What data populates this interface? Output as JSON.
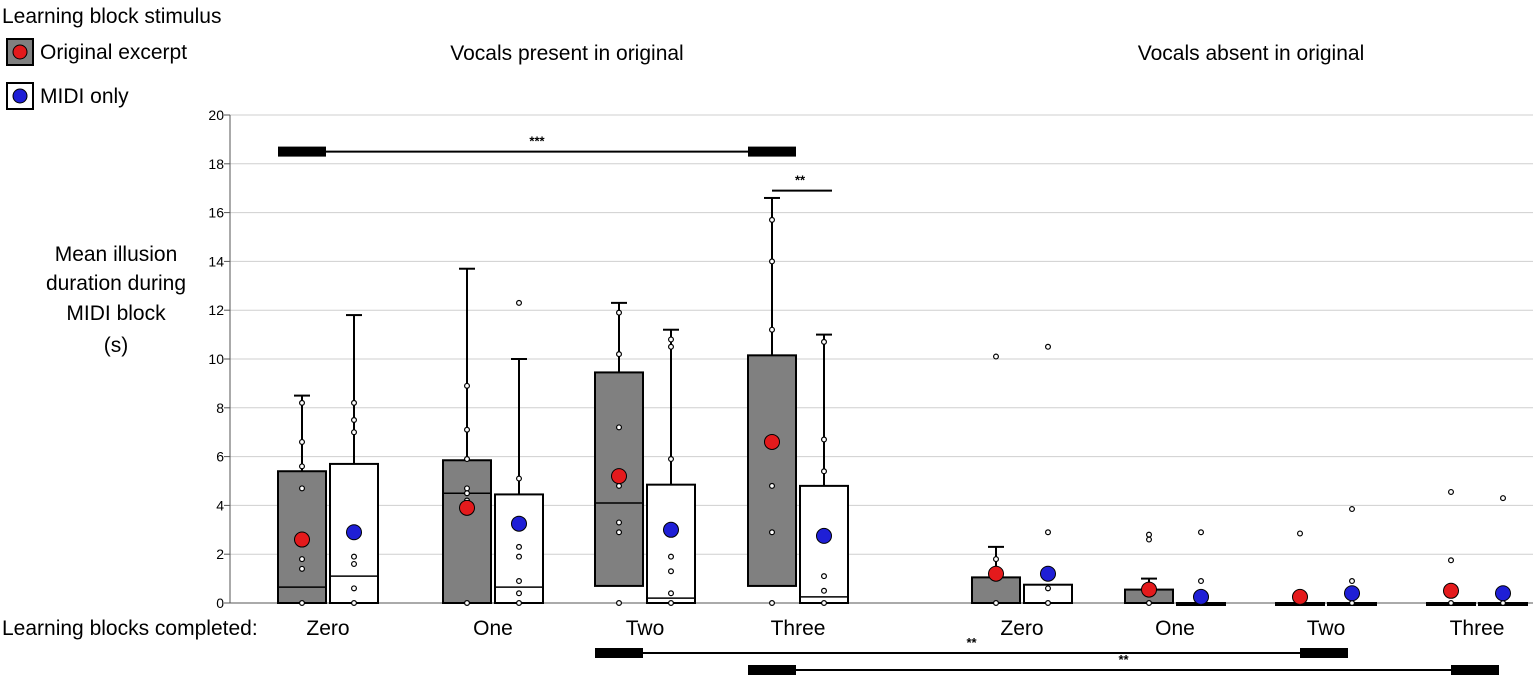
{
  "chart_data": {
    "type": "box",
    "legend": {
      "title": "Learning block stimulus",
      "placement": "top-left",
      "entries": [
        {
          "name": "Original excerpt",
          "box_color": "#808080",
          "marker_color": "#e41a1c"
        },
        {
          "name": "MIDI only",
          "box_color": "#ffffff",
          "marker_color": "#1f1fd6"
        }
      ]
    },
    "group_titles": [
      "Vocals present in original",
      "Vocals absent in original"
    ],
    "ylabel_lines": [
      "Mean illusion",
      "duration during",
      "MIDI block",
      "(s)"
    ],
    "x_axis_prefix": "Learning blocks completed:",
    "categories": [
      "Zero",
      "One",
      "Two",
      "Three",
      "Zero",
      "One",
      "Two",
      "Three"
    ],
    "ylim": [
      0,
      20
    ],
    "yticks": [
      0,
      2,
      4,
      6,
      8,
      10,
      12,
      14,
      16,
      18,
      20
    ],
    "grid": true,
    "series": [
      {
        "name": "Original excerpt",
        "boxes": [
          {
            "min": 0,
            "q1": 0,
            "median": 0.65,
            "q3": 5.4,
            "max": 8.5,
            "mean": 2.6,
            "points": [
              0,
              1.4,
              1.8,
              4.7,
              5.6,
              6.6,
              8.2
            ]
          },
          {
            "min": 0,
            "q1": 0,
            "median": 4.5,
            "q3": 5.85,
            "max": 13.7,
            "mean": 3.9,
            "points": [
              0,
              4.2,
              4.5,
              4.7,
              5.9,
              7.1,
              8.9
            ]
          },
          {
            "min": 0,
            "q1": 0.7,
            "median": 4.1,
            "q3": 9.45,
            "max": 12.3,
            "mean": 5.2,
            "points": [
              0,
              2.9,
              3.3,
              4.8,
              7.2,
              10.2,
              11.9
            ]
          },
          {
            "min": 0,
            "q1": 0.7,
            "median": 0.7,
            "q3": 10.15,
            "max": 16.6,
            "mean": 6.6,
            "points": [
              0,
              2.9,
              4.8,
              11.2,
              14.0,
              15.7
            ]
          },
          {
            "min": 0,
            "q1": 0,
            "median": 0,
            "q3": 1.05,
            "max": 2.3,
            "mean": 1.2,
            "points": [
              0,
              1.2,
              1.8,
              10.1
            ]
          },
          {
            "min": 0,
            "q1": 0,
            "median": 0,
            "q3": 0.55,
            "max": 1.0,
            "mean": 0.55,
            "points": [
              0,
              0.5,
              2.6,
              2.8
            ]
          },
          {
            "min": 0,
            "q1": 0,
            "median": 0,
            "q3": 0,
            "max": 0,
            "mean": 0.25,
            "points": [
              0,
              2.85
            ]
          },
          {
            "min": 0,
            "q1": 0,
            "median": 0,
            "q3": 0,
            "max": 0,
            "mean": 0.5,
            "points": [
              0,
              1.75,
              4.55
            ]
          }
        ]
      },
      {
        "name": "MIDI only",
        "boxes": [
          {
            "min": 0,
            "q1": 0,
            "median": 1.1,
            "q3": 5.7,
            "max": 11.8,
            "mean": 2.9,
            "points": [
              0,
              0.6,
              1.6,
              1.9,
              7.0,
              7.5,
              8.2
            ]
          },
          {
            "min": 0,
            "q1": 0,
            "median": 0.65,
            "q3": 4.45,
            "max": 10.0,
            "mean": 3.25,
            "points": [
              0,
              0.4,
              0.9,
              1.9,
              2.3,
              5.1,
              12.3
            ]
          },
          {
            "min": 0,
            "q1": 0,
            "median": 0.2,
            "q3": 4.85,
            "max": 11.2,
            "mean": 3.0,
            "points": [
              0,
              0.4,
              1.3,
              1.9,
              5.9,
              10.5,
              10.8
            ]
          },
          {
            "min": 0,
            "q1": 0,
            "median": 0.25,
            "q3": 4.8,
            "max": 11.0,
            "mean": 2.75,
            "points": [
              0,
              0.5,
              1.1,
              5.4,
              6.7,
              10.7
            ]
          },
          {
            "min": 0,
            "q1": 0,
            "median": 0,
            "q3": 0.75,
            "max": 0.75,
            "mean": 1.2,
            "points": [
              0,
              0.6,
              2.9,
              10.5
            ]
          },
          {
            "min": 0,
            "q1": 0,
            "median": 0,
            "q3": 0,
            "max": 0,
            "mean": 0.25,
            "points": [
              0,
              0.9,
              2.9
            ]
          },
          {
            "min": 0,
            "q1": 0,
            "median": 0,
            "q3": 0,
            "max": 0,
            "mean": 0.4,
            "points": [
              0,
              0.9,
              3.85
            ]
          },
          {
            "min": 0,
            "q1": 0,
            "median": 0,
            "q3": 0,
            "max": 0,
            "mean": 0.4,
            "points": [
              0,
              4.3
            ]
          }
        ]
      }
    ],
    "significance_brackets": [
      {
        "label": "***",
        "from_category": 0,
        "to_category": 3,
        "y": 18.5,
        "placement": "above"
      },
      {
        "label": "**",
        "from_category": 3,
        "to_category": 3,
        "y": 16.9,
        "placement": "above",
        "within_pair": true
      },
      {
        "label": "**",
        "from_category": 2,
        "to_category": 6,
        "placement": "below-axis-1"
      },
      {
        "label": "**",
        "from_category": 3,
        "to_category": 7,
        "placement": "below-axis-2"
      }
    ]
  }
}
